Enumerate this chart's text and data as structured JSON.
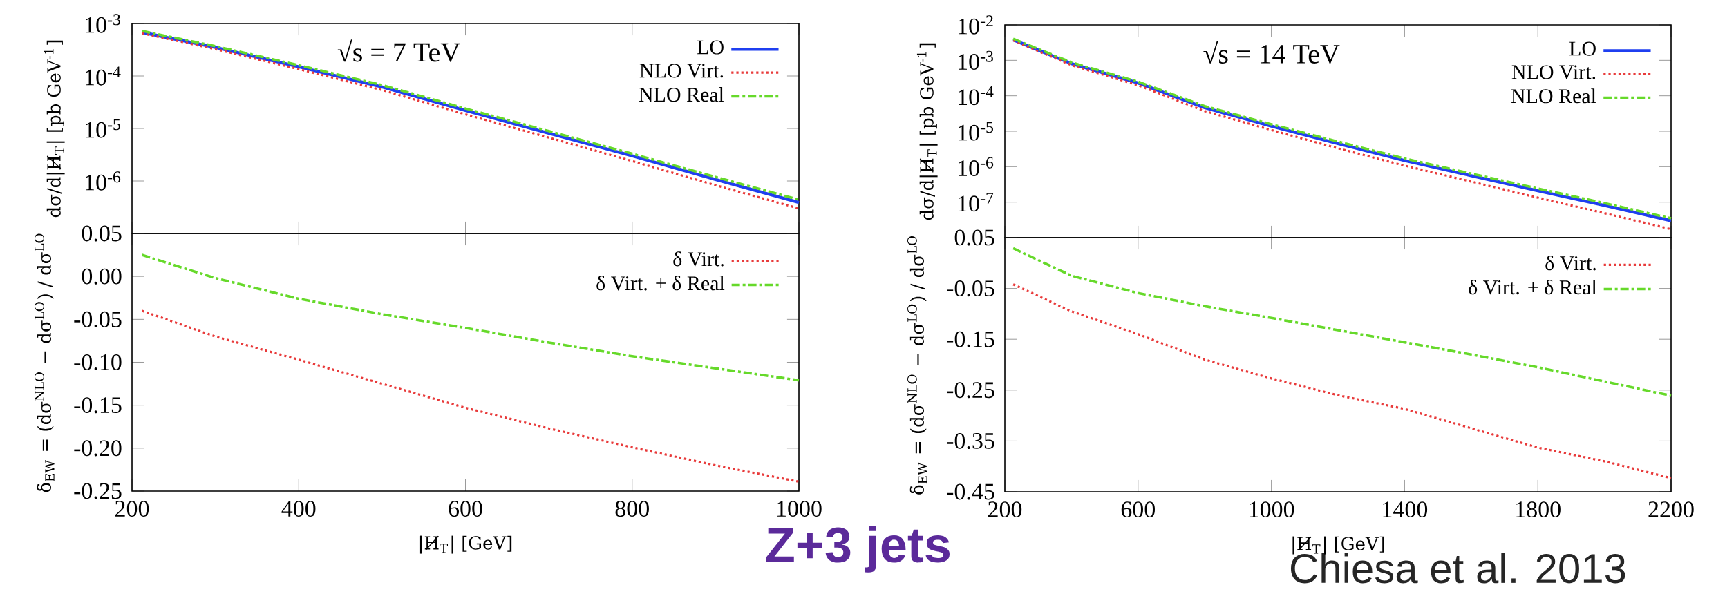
{
  "chart_data": [
    {
      "type": "line",
      "ylabel": "dσ/d|H̸$_{T}$| [pb GeV$^{-1}$]",
      "annotations": [
        "√s = 7 TeV"
      ],
      "x": [
        212,
        300,
        400,
        500,
        600,
        700,
        800,
        900,
        1000
      ],
      "xlim": [
        200,
        1000
      ],
      "xticks": [
        200,
        400,
        600,
        800,
        1000
      ],
      "ylim": [
        1e-07,
        0.001
      ],
      "yticks": [
        {
          "value": 0.001,
          "label": "10$^{-3}$"
        },
        {
          "value": 0.0001,
          "label": "10$^{-4}$"
        },
        {
          "value": 1e-05,
          "label": "10$^{-5}$"
        },
        {
          "value": 1e-06,
          "label": "10$^{-6}$"
        }
      ],
      "log": "y",
      "legend": "top right",
      "tick_labels": "y",
      "series": [
        {
          "name": "LO",
          "color": "#1f3ff0",
          "line_style": "solid",
          "values": [
            0.00068,
            0.00035,
            0.00015,
            6.2e-05,
            2.2e-05,
            8.1e-06,
            3e-06,
            1.07e-06,
            3.9e-07
          ]
        },
        {
          "name": "NLO Virt.",
          "color": "#e83a3a",
          "line_style": "dotted",
          "values": [
            0.00065,
            0.000325,
            0.000135,
            5.4e-05,
            1.86e-05,
            6.7e-06,
            2.4e-06,
            8.3e-07,
            3e-07
          ]
        },
        {
          "name": "NLO Real",
          "color": "#66d92a",
          "line_style": "dashed",
          "values": [
            0.00072,
            0.00037,
            0.00016,
            6.7e-05,
            2.4e-05,
            8.9e-06,
            3.3e-06,
            1.19e-06,
            4.4e-07
          ]
        }
      ]
    },
    {
      "type": "line",
      "xlabel": "|H̸$_{T}$| [GeV]",
      "ylabel": "δ$_{EW}$ = (dσ$^{NLO}$ − dσ$^{LO}$) / dσ$^{LO}$",
      "x": [
        212,
        300,
        400,
        500,
        600,
        700,
        800,
        900,
        1000
      ],
      "xlim": [
        200,
        1000
      ],
      "xticks": [
        200,
        400,
        600,
        800,
        1000
      ],
      "ylim": [
        -0.25,
        0.05
      ],
      "yticks": [
        {
          "value": -0.25,
          "label": "-0.25"
        },
        {
          "value": -0.2,
          "label": "-0.20"
        },
        {
          "value": -0.15,
          "label": "-0.15"
        },
        {
          "value": -0.1,
          "label": "-0.10"
        },
        {
          "value": -0.05,
          "label": "-0.05"
        },
        {
          "value": 0,
          "label": "0.00"
        },
        {
          "value": 0.05,
          "label": "0.05"
        }
      ],
      "legend": "top right",
      "series": [
        {
          "name": "δ Virt.",
          "color": "#e83a3a",
          "line_style": "dotted",
          "values": [
            -0.04,
            -0.07,
            -0.097,
            -0.125,
            -0.153,
            -0.177,
            -0.199,
            -0.22,
            -0.239
          ]
        },
        {
          "name": "δ Virt. + δ Real",
          "color": "#66d92a",
          "line_style": "dashed",
          "values": [
            0.025,
            -0.002,
            -0.026,
            -0.044,
            -0.06,
            -0.077,
            -0.093,
            -0.107,
            -0.121
          ]
        }
      ]
    },
    {
      "type": "line",
      "ylabel": "dσ/d|H̸$_{T}$| [pb GeV$^{-1}$]",
      "annotations": [
        "√s = 14 TeV"
      ],
      "x": [
        225,
        400,
        600,
        800,
        1000,
        1200,
        1400,
        1600,
        1800,
        2000,
        2200
      ],
      "xlim": [
        200,
        2200
      ],
      "xticks": [
        200,
        600,
        1000,
        1400,
        1800,
        2200
      ],
      "ylim": [
        1e-08,
        0.01
      ],
      "yticks": [
        {
          "value": 0.01,
          "label": "10$^{-2}$"
        },
        {
          "value": 0.001,
          "label": "10$^{-3}$"
        },
        {
          "value": 0.0001,
          "label": "10$^{-4}$"
        },
        {
          "value": 1e-05,
          "label": "10$^{-5}$"
        },
        {
          "value": 1e-06,
          "label": "10$^{-6}$"
        },
        {
          "value": 1e-07,
          "label": "10$^{-7}$"
        }
      ],
      "log": "y",
      "legend": "top right",
      "tick_labels": "y",
      "series": [
        {
          "name": "LO",
          "color": "#1f3ff0",
          "line_style": "solid",
          "values": [
            0.0038,
            0.00081,
            0.00023,
            4.6e-05,
            1.4e-05,
            4.5e-06,
            1.5e-06,
            5.6e-07,
            2.1e-07,
            8.1e-08,
            3e-08
          ]
        },
        {
          "name": "NLO Virt.",
          "color": "#e83a3a",
          "line_style": "dotted",
          "values": [
            0.00364,
            0.00073,
            0.000198,
            3.7e-05,
            1.08e-05,
            3.3e-06,
            1.07e-06,
            3.8e-07,
            1.34e-07,
            4.9e-08,
            1.73e-08
          ]
        },
        {
          "name": "NLO Real",
          "color": "#66d92a",
          "line_style": "dashed",
          "values": [
            0.00407,
            0.00087,
            0.000249,
            5.1e-05,
            1.57e-05,
            5.1e-06,
            1.7e-06,
            6.4e-07,
            2.43e-07,
            9.4e-08,
            3.5e-08
          ]
        }
      ]
    },
    {
      "type": "line",
      "xlabel": "|H̸$_{T}$| [GeV]",
      "ylabel": "δ$_{EW}$ = (dσ$^{NLO}$ − dσ$^{LO}$) / dσ$^{LO}$",
      "annotations": [
        "Z+3 jets",
        "Chiesa et al. 2013"
      ],
      "x": [
        225,
        400,
        600,
        800,
        1000,
        1200,
        1400,
        1600,
        1800,
        2000,
        2200
      ],
      "xlim": [
        200,
        2200
      ],
      "xticks": [
        200,
        600,
        1000,
        1400,
        1800,
        2200
      ],
      "ylim": [
        -0.45,
        0.05
      ],
      "yticks": [
        {
          "value": -0.45,
          "label": "-0.45"
        },
        {
          "value": -0.35,
          "label": "-0.35"
        },
        {
          "value": -0.25,
          "label": "-0.25"
        },
        {
          "value": -0.15,
          "label": "-0.15"
        },
        {
          "value": -0.05,
          "label": "-0.05"
        },
        {
          "value": 0.05,
          "label": "0.05"
        }
      ],
      "legend": "top right",
      "series": [
        {
          "name": "δ Virt.",
          "color": "#e83a3a",
          "line_style": "dotted",
          "values": [
            -0.042,
            -0.095,
            -0.14,
            -0.19,
            -0.227,
            -0.26,
            -0.287,
            -0.325,
            -0.363,
            -0.39,
            -0.423
          ]
        },
        {
          "name": "δ Virt. + δ Real",
          "color": "#66d92a",
          "line_style": "dashed",
          "values": [
            0.029,
            -0.025,
            -0.059,
            -0.085,
            -0.108,
            -0.132,
            -0.156,
            -0.18,
            -0.205,
            -0.233,
            -0.261
          ]
        }
      ]
    }
  ]
}
